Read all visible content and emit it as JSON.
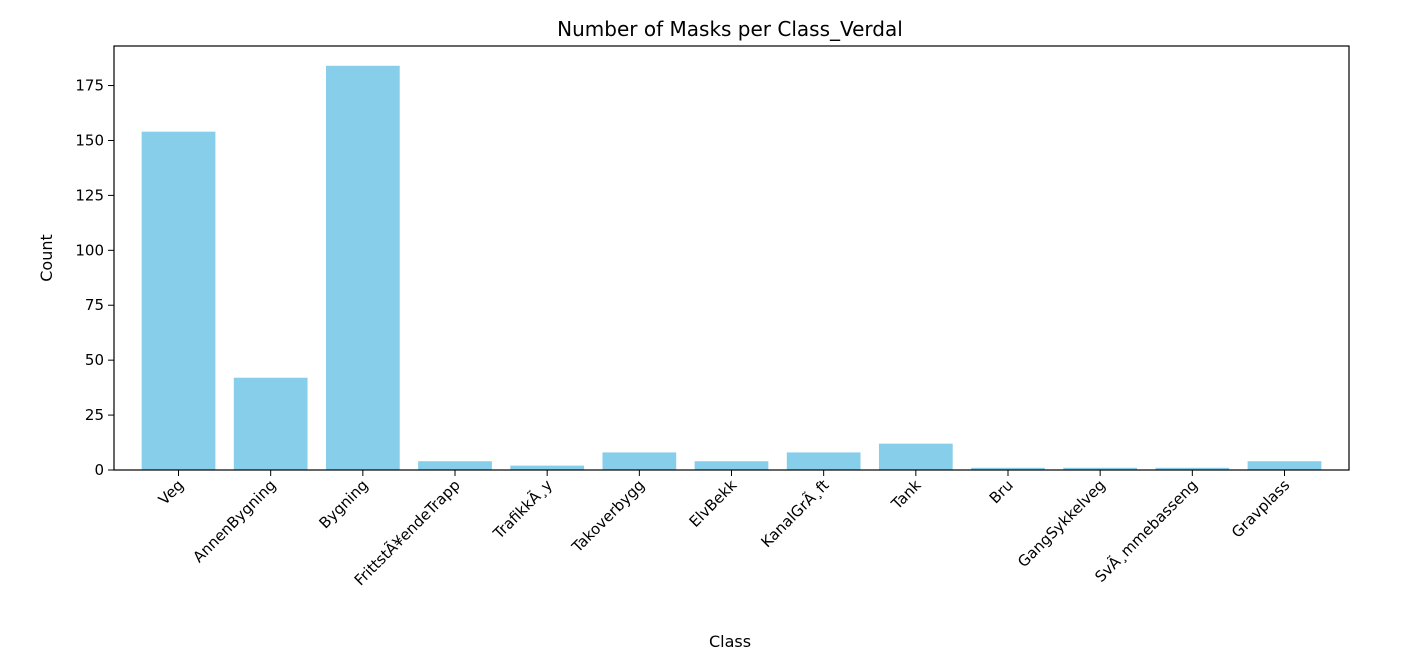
{
  "chart_data": {
    "type": "bar",
    "title": "Number of Masks per Class_Verdal",
    "xlabel": "Class",
    "ylabel": "Count",
    "categories": [
      "Veg",
      "AnnenBygning",
      "Bygning",
      "FrittstÃ¥endeTrapp",
      "TrafikkÃ¸y",
      "Takoverbygg",
      "ElvBekk",
      "KanalGrÃ¸ft",
      "Tank",
      "Bru",
      "GangSykkelveg",
      "SvÃ¸mmebasseng",
      "Gravplass"
    ],
    "values": [
      154,
      42,
      184,
      4,
      2,
      8,
      4,
      8,
      12,
      1,
      1,
      1,
      4
    ],
    "ylim": [
      0,
      193
    ],
    "yticks": [
      0,
      25,
      50,
      75,
      100,
      125,
      150,
      175
    ],
    "bar_color": "#87ceeb",
    "grid": false,
    "legend": "none"
  }
}
